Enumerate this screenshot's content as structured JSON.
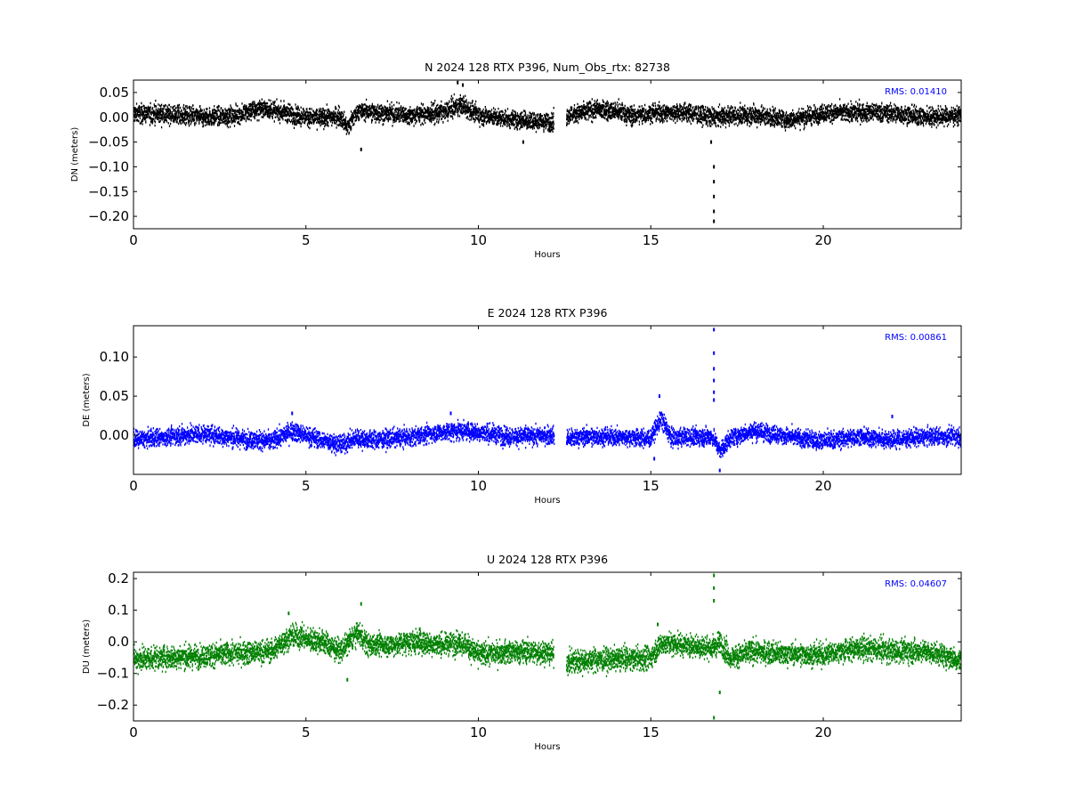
{
  "chart_data": [
    {
      "type": "scatter",
      "title": "N 2024 128 RTX  P396, Num_Obs_rtx: 82738",
      "xlabel": "Hours",
      "ylabel": "DN (meters)",
      "xlim": [
        0,
        24
      ],
      "ylim": [
        -0.225,
        0.075
      ],
      "xticks": [
        0,
        5,
        10,
        15,
        20
      ],
      "xtick_labels": [
        "0",
        "5",
        "10",
        "15",
        "20"
      ],
      "yticks": [
        0.05,
        0.0,
        -0.05,
        -0.1,
        -0.15,
        -0.2
      ],
      "ytick_labels": [
        "0.05",
        "0.00",
        "−0.05",
        "−0.10",
        "−0.15",
        "−0.20"
      ],
      "annotation": "RMS:  0.01410",
      "color": "#000000",
      "annotation_color": "#0000ff",
      "grid": false,
      "gaps": [
        [
          12.2,
          12.55
        ]
      ],
      "approx_trend": [
        [
          0,
          0.008
        ],
        [
          1,
          0.006
        ],
        [
          2,
          0.0
        ],
        [
          3,
          0.004
        ],
        [
          3.7,
          0.018
        ],
        [
          4.5,
          0.008
        ],
        [
          5.2,
          -0.002
        ],
        [
          6.0,
          0.002
        ],
        [
          6.2,
          -0.02
        ],
        [
          6.5,
          0.012
        ],
        [
          7,
          0.01
        ],
        [
          8,
          0.004
        ],
        [
          9,
          0.01
        ],
        [
          9.5,
          0.025
        ],
        [
          10,
          0.005
        ],
        [
          11,
          -0.005
        ],
        [
          12.1,
          -0.01
        ],
        [
          12.6,
          0.005
        ],
        [
          13.5,
          0.015
        ],
        [
          14,
          0.012
        ],
        [
          14.5,
          0.003
        ],
        [
          15,
          0.008
        ],
        [
          16,
          0.01
        ],
        [
          16.8,
          0.0
        ],
        [
          17.5,
          0.004
        ],
        [
          18,
          0.005
        ],
        [
          19,
          -0.005
        ],
        [
          20,
          0.008
        ],
        [
          21,
          0.01
        ],
        [
          22,
          0.008
        ],
        [
          23,
          0.0
        ],
        [
          24,
          0.004
        ]
      ],
      "approx_noise": 0.013,
      "outliers": [
        [
          16.83,
          -0.1
        ],
        [
          16.83,
          -0.13
        ],
        [
          16.83,
          -0.16
        ],
        [
          16.83,
          -0.19
        ],
        [
          16.83,
          -0.21
        ],
        [
          6.6,
          -0.065
        ],
        [
          11.3,
          -0.05
        ],
        [
          9.4,
          0.07
        ],
        [
          9.55,
          0.065
        ],
        [
          16.75,
          -0.05
        ]
      ]
    },
    {
      "type": "scatter",
      "title": "E 2024 128 RTX  P396",
      "xlabel": "Hours",
      "ylabel": "DE (meters)",
      "xlim": [
        0,
        24
      ],
      "ylim": [
        -0.05,
        0.14
      ],
      "xticks": [
        0,
        5,
        10,
        15,
        20
      ],
      "xtick_labels": [
        "0",
        "5",
        "10",
        "15",
        "20"
      ],
      "yticks": [
        0.1,
        0.05,
        0.0
      ],
      "ytick_labels": [
        "0.10",
        "0.05",
        "0.00"
      ],
      "annotation": "RMS:  0.00861",
      "color": "#0000ff",
      "annotation_color": "#0000ff",
      "grid": false,
      "gaps": [
        [
          12.2,
          12.55
        ]
      ],
      "approx_trend": [
        [
          0,
          -0.006
        ],
        [
          1,
          -0.002
        ],
        [
          2,
          0.002
        ],
        [
          3,
          -0.004
        ],
        [
          4,
          -0.008
        ],
        [
          4.6,
          0.006
        ],
        [
          5.2,
          -0.003
        ],
        [
          6,
          -0.012
        ],
        [
          6.5,
          -0.004
        ],
        [
          7,
          -0.006
        ],
        [
          8,
          -0.002
        ],
        [
          9,
          0.004
        ],
        [
          9.5,
          0.006
        ],
        [
          10,
          0.004
        ],
        [
          11,
          -0.002
        ],
        [
          12.1,
          0.0
        ],
        [
          12.6,
          -0.004
        ],
        [
          13,
          -0.002
        ],
        [
          14,
          -0.002
        ],
        [
          15,
          -0.004
        ],
        [
          15.3,
          0.022
        ],
        [
          15.6,
          -0.004
        ],
        [
          16,
          -0.002
        ],
        [
          16.8,
          -0.002
        ],
        [
          17.0,
          -0.02
        ],
        [
          17.3,
          -0.004
        ],
        [
          18,
          0.006
        ],
        [
          19,
          -0.002
        ],
        [
          20,
          -0.008
        ],
        [
          21,
          -0.002
        ],
        [
          22,
          -0.006
        ],
        [
          23,
          -0.002
        ],
        [
          24,
          -0.002
        ]
      ],
      "approx_noise": 0.008,
      "outliers": [
        [
          16.83,
          0.135
        ],
        [
          16.83,
          0.105
        ],
        [
          16.83,
          0.085
        ],
        [
          16.83,
          0.07
        ],
        [
          16.83,
          0.055
        ],
        [
          16.83,
          0.045
        ],
        [
          15.25,
          0.05
        ],
        [
          17.0,
          -0.045
        ],
        [
          9.2,
          0.028
        ],
        [
          4.6,
          0.028
        ],
        [
          22.0,
          0.024
        ],
        [
          15.1,
          -0.03
        ]
      ]
    },
    {
      "type": "scatter",
      "title": "U 2024 128 RTX  P396",
      "xlabel": "Hours",
      "ylabel": "DU (meters)",
      "xlim": [
        0,
        24
      ],
      "ylim": [
        -0.25,
        0.22
      ],
      "xticks": [
        0,
        5,
        10,
        15,
        20
      ],
      "xtick_labels": [
        "0",
        "5",
        "10",
        "15",
        "20"
      ],
      "yticks": [
        0.2,
        0.1,
        0.0,
        -0.1,
        -0.2
      ],
      "ytick_labels": [
        "0.2",
        "0.1",
        "0.0",
        "−0.1",
        "−0.2"
      ],
      "annotation": "RMS:  0.04607",
      "color": "#008000",
      "annotation_color": "#0000ff",
      "grid": false,
      "gaps": [
        [
          12.2,
          12.55
        ]
      ],
      "approx_trend": [
        [
          0,
          -0.055
        ],
        [
          1,
          -0.05
        ],
        [
          2,
          -0.045
        ],
        [
          3,
          -0.035
        ],
        [
          4,
          -0.03
        ],
        [
          4.6,
          0.02
        ],
        [
          5,
          0.01
        ],
        [
          5.5,
          0.0
        ],
        [
          6,
          -0.03
        ],
        [
          6.5,
          0.03
        ],
        [
          6.8,
          -0.01
        ],
        [
          7.5,
          -0.01
        ],
        [
          8,
          0.0
        ],
        [
          9,
          -0.01
        ],
        [
          9.5,
          0.0
        ],
        [
          10,
          -0.04
        ],
        [
          11,
          -0.03
        ],
        [
          12.1,
          -0.035
        ],
        [
          12.6,
          -0.065
        ],
        [
          13,
          -0.06
        ],
        [
          14,
          -0.055
        ],
        [
          15,
          -0.05
        ],
        [
          15.3,
          -0.005
        ],
        [
          16,
          -0.01
        ],
        [
          16.8,
          -0.02
        ],
        [
          17.0,
          0.0
        ],
        [
          17.3,
          -0.05
        ],
        [
          18,
          -0.03
        ],
        [
          19,
          -0.04
        ],
        [
          20,
          -0.04
        ],
        [
          21,
          -0.02
        ],
        [
          22,
          -0.03
        ],
        [
          23,
          -0.03
        ],
        [
          24,
          -0.06
        ]
      ],
      "approx_noise": 0.025,
      "outliers": [
        [
          16.83,
          0.21
        ],
        [
          16.83,
          0.17
        ],
        [
          16.83,
          0.13
        ],
        [
          16.83,
          -0.24
        ],
        [
          6.6,
          0.12
        ],
        [
          17.0,
          -0.16
        ],
        [
          4.5,
          0.09
        ],
        [
          6.2,
          -0.12
        ],
        [
          15.2,
          0.055
        ],
        [
          8.3,
          0.04
        ]
      ]
    }
  ]
}
